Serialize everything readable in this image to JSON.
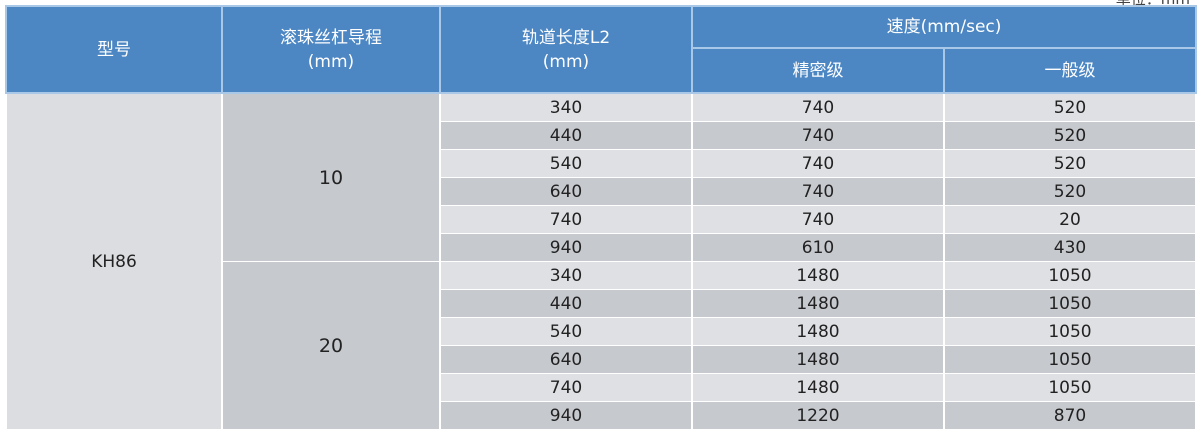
{
  "unit_note": "单位：mm",
  "header": {
    "model": "型号",
    "lead": "滚珠丝杠导程",
    "lead_unit": "(mm)",
    "length": "轨道长度L2",
    "length_unit": "(mm)",
    "speed": "速度(mm/sec)",
    "precision": "精密级",
    "general": "一般级"
  },
  "colors": {
    "header": "#4c87c4",
    "row_light": "#dfe0e4",
    "row_dark": "#c6c9ce"
  },
  "model": "KH86",
  "groups": [
    {
      "lead": "10",
      "rows": [
        [
          "340",
          "740",
          "520"
        ],
        [
          "440",
          "740",
          "520"
        ],
        [
          "540",
          "740",
          "520"
        ],
        [
          "640",
          "740",
          "520"
        ],
        [
          "740",
          "740",
          "20"
        ],
        [
          "940",
          "610",
          "430"
        ]
      ]
    },
    {
      "lead": "20",
      "rows": [
        [
          "340",
          "1480",
          "1050"
        ],
        [
          "440",
          "1480",
          "1050"
        ],
        [
          "540",
          "1480",
          "1050"
        ],
        [
          "640",
          "1480",
          "1050"
        ],
        [
          "740",
          "1480",
          "1050"
        ],
        [
          "940",
          "1220",
          "870"
        ]
      ]
    }
  ]
}
